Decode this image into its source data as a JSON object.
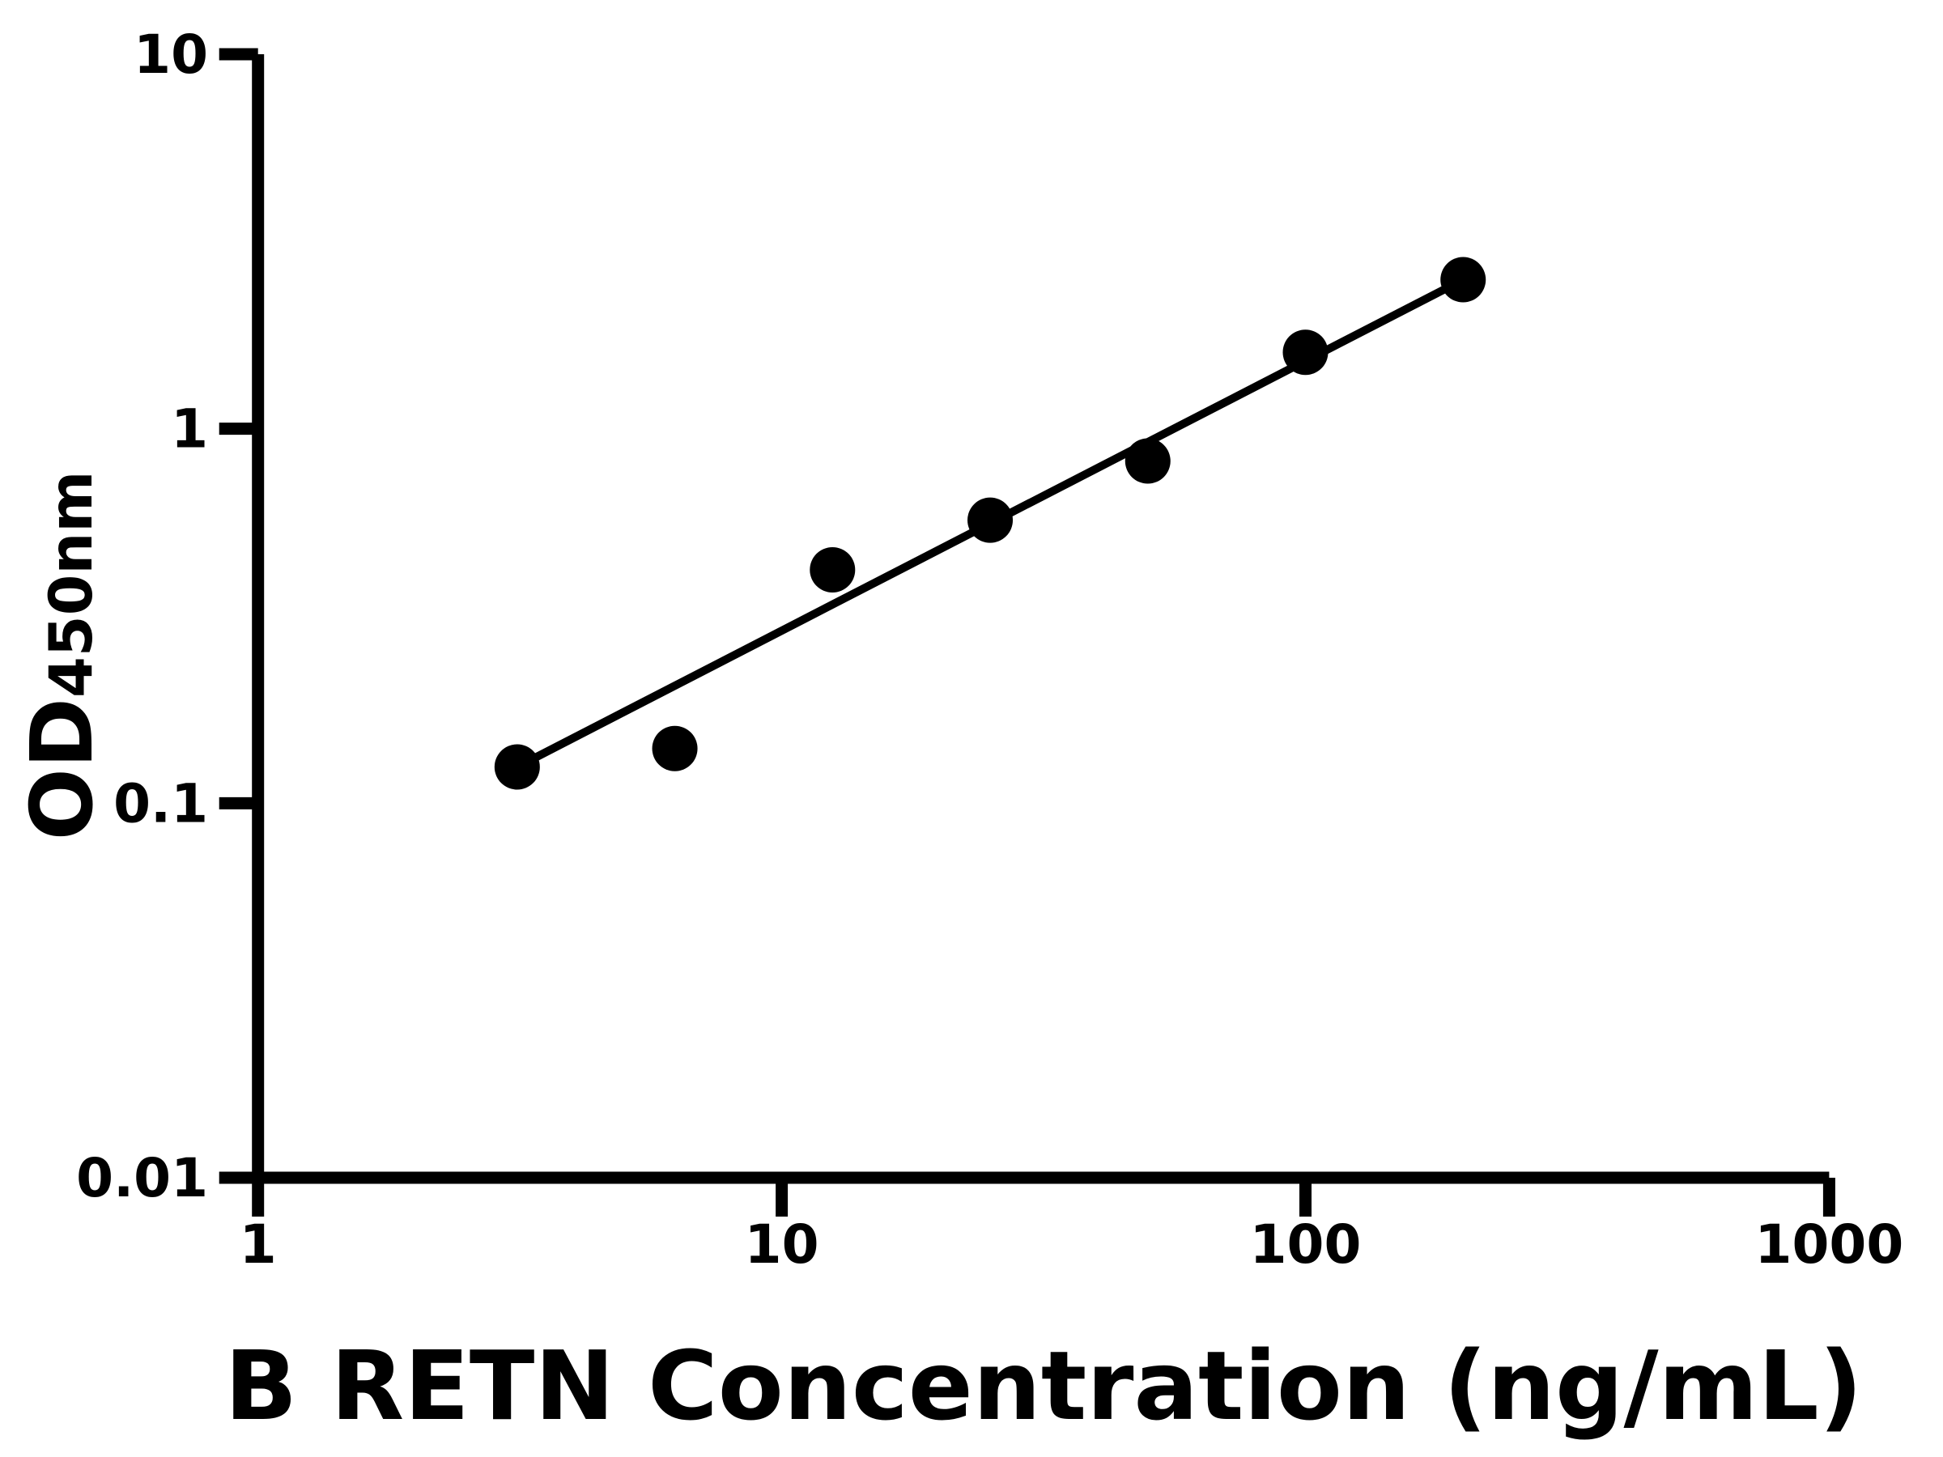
{
  "chart_data": {
    "type": "scatter",
    "title": "",
    "xlabel": "B RETN Concentration (ng/mL)",
    "ylabel_main": "OD",
    "ylabel_sub": "450nm",
    "x_scale": "log",
    "y_scale": "log",
    "xlim": [
      1,
      1000
    ],
    "ylim": [
      0.01,
      10
    ],
    "x_ticks": [
      1,
      10,
      100,
      1000
    ],
    "x_tick_labels": [
      "1",
      "10",
      "100",
      "1000"
    ],
    "y_ticks": [
      0.01,
      0.1,
      1,
      10
    ],
    "y_tick_labels": [
      "0.01",
      "0.1",
      "1",
      "10"
    ],
    "grid": false,
    "legend": "none",
    "series": [
      {
        "name": "standard-curve-points",
        "type": "scatter",
        "marker": "filled-circle",
        "color": "#000000",
        "points": [
          {
            "x": 3.125,
            "y": 0.125
          },
          {
            "x": 6.25,
            "y": 0.14
          },
          {
            "x": 12.5,
            "y": 0.42
          },
          {
            "x": 25,
            "y": 0.57
          },
          {
            "x": 50,
            "y": 0.82
          },
          {
            "x": 100,
            "y": 1.6
          },
          {
            "x": 200,
            "y": 2.5
          }
        ]
      },
      {
        "name": "fit-line",
        "type": "line",
        "color": "#000000",
        "points": [
          {
            "x": 3.125,
            "y": 0.125
          },
          {
            "x": 200,
            "y": 2.5
          }
        ]
      }
    ],
    "colors": {
      "foreground": "#000000",
      "background": "#ffffff"
    }
  }
}
